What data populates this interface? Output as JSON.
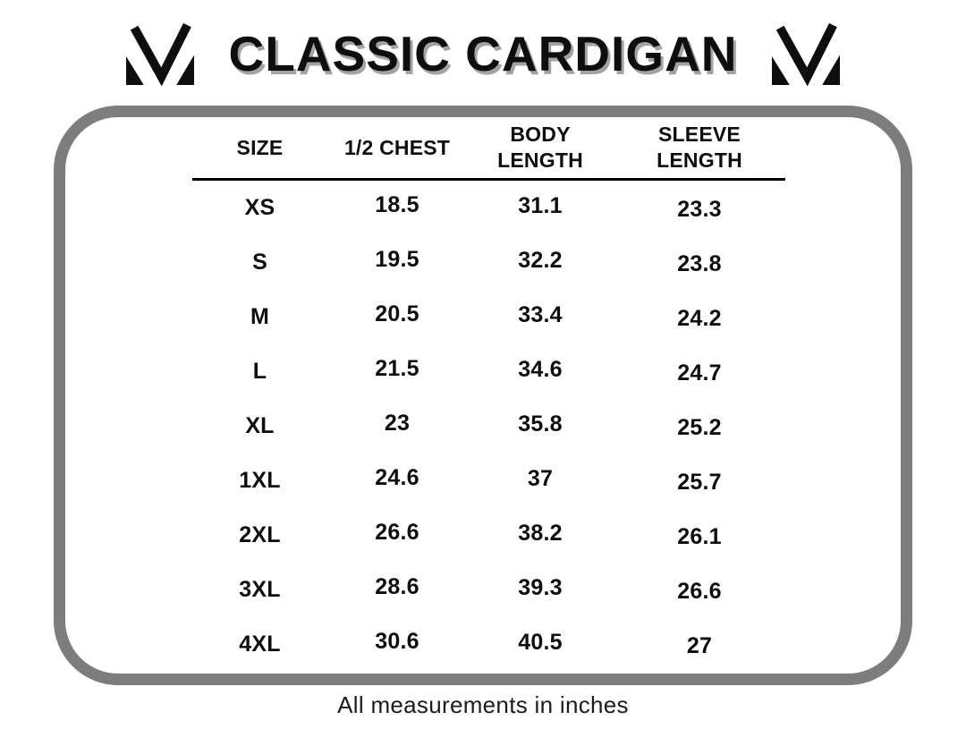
{
  "title": "CLASSIC CARDIGAN",
  "logo": {
    "icon": "brand-m-monogram-icon"
  },
  "footer_note": "All measurements in inches",
  "colors": {
    "border_gray": "#7d7d7d",
    "text_black": "#0e0e0e",
    "title_shadow_gray": "#a3a3a3"
  },
  "chart_data": {
    "type": "table",
    "title": "CLASSIC CARDIGAN",
    "units": "inches",
    "columns": [
      "SIZE",
      "1/2 CHEST",
      "BODY\nLENGTH",
      "SLEEVE\nLENGTH"
    ],
    "rows": [
      [
        "XS",
        "18.5",
        "31.1",
        "23.3"
      ],
      [
        "S",
        "19.5",
        "32.2",
        "23.8"
      ],
      [
        "M",
        "20.5",
        "33.4",
        "24.2"
      ],
      [
        "L",
        "21.5",
        "34.6",
        "24.7"
      ],
      [
        "XL",
        "23",
        "35.8",
        "25.2"
      ],
      [
        "1XL",
        "24.6",
        "37",
        "25.7"
      ],
      [
        "2XL",
        "26.6",
        "38.2",
        "26.1"
      ],
      [
        "3XL",
        "28.6",
        "39.3",
        "26.6"
      ],
      [
        "4XL",
        "30.6",
        "40.5",
        "27"
      ]
    ]
  }
}
